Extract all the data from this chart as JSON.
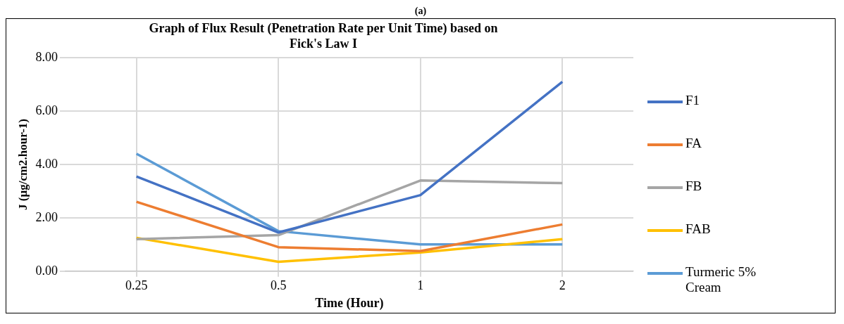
{
  "chart_data": {
    "type": "line",
    "title": "Graph of Flux Result (Penetration Rate per Unit Time) based on Fick's Law I",
    "xlabel": "Time (Hour)",
    "ylabel": "J (µg/cm2.hour-1)",
    "annotations": [
      "(a)"
    ],
    "categories": [
      "0.25",
      "0.5",
      "1",
      "2"
    ],
    "series": [
      {
        "name": "F1",
        "color": "#4472c4",
        "values": [
          3.55,
          1.45,
          2.85,
          7.1
        ]
      },
      {
        "name": "FA",
        "color": "#ed7d31",
        "values": [
          2.6,
          0.9,
          0.75,
          1.75
        ]
      },
      {
        "name": "FB",
        "color": "#a5a5a5",
        "values": [
          1.2,
          1.35,
          3.4,
          3.3
        ]
      },
      {
        "name": "FAB",
        "color": "#ffc000",
        "values": [
          1.25,
          0.35,
          0.7,
          1.2
        ]
      },
      {
        "name": "Turmeric 5% Cream",
        "color": "#5b9bd5",
        "values": [
          4.4,
          1.5,
          1.0,
          1.0
        ]
      }
    ],
    "ylim": [
      0,
      8
    ],
    "yticks": [
      {
        "value": 0,
        "label": "0.00"
      },
      {
        "value": 2,
        "label": "2.00"
      },
      {
        "value": 4,
        "label": "4.00"
      },
      {
        "value": 6,
        "label": "6.00"
      },
      {
        "value": 8,
        "label": "8.00"
      }
    ],
    "grid": true,
    "legend": "right",
    "marker": "none",
    "line_style": "solid"
  }
}
